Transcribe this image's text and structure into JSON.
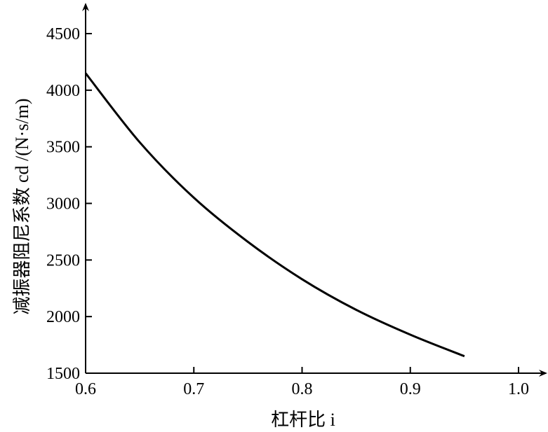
{
  "chart_data": {
    "type": "line",
    "title": "",
    "xlabel": "杠杆比 i",
    "ylabel": "减振器阻尼系数 cd /(N·s/m)",
    "xlim": [
      0.6,
      1.0
    ],
    "ylim": [
      1500,
      4500
    ],
    "x_ticks": [
      "0.6",
      "0.7",
      "0.8",
      "0.9",
      "1.0"
    ],
    "y_ticks": [
      "1500",
      "2000",
      "2500",
      "3000",
      "3500",
      "4000",
      "4500"
    ],
    "grid": false,
    "series": [
      {
        "x": [
          0.6,
          0.65,
          0.7,
          0.75,
          0.8,
          0.85,
          0.9,
          0.95
        ],
        "y": [
          4150,
          3540,
          3050,
          2660,
          2330,
          2060,
          1840,
          1650
        ]
      }
    ],
    "colors": {
      "line": "#000000",
      "axis": "#000000"
    }
  }
}
